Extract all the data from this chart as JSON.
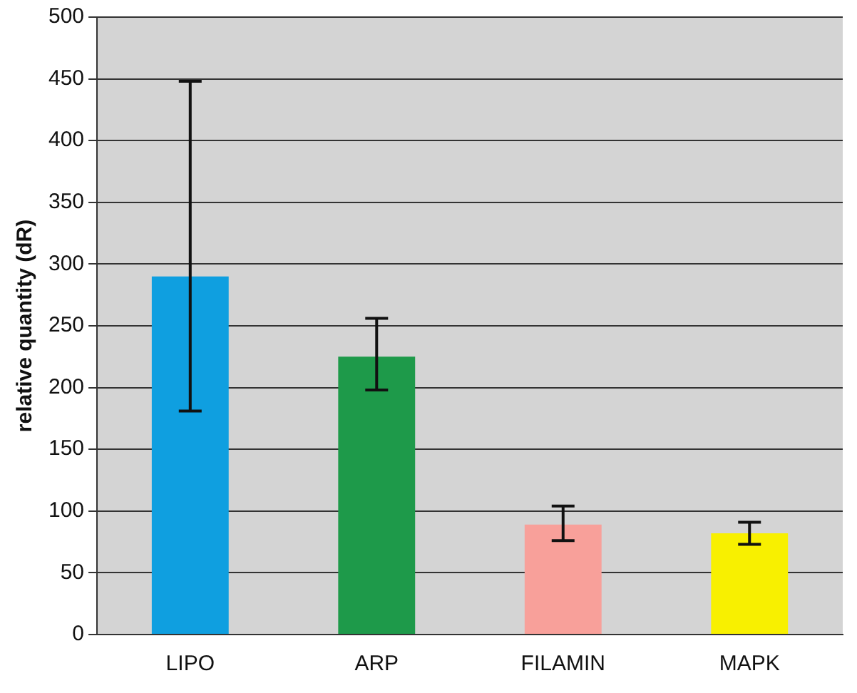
{
  "chart_data": {
    "type": "bar",
    "ylabel": "relative quantity (dR)",
    "categories": [
      "LIPO",
      "ARP",
      "FILAMIN",
      "MAPK"
    ],
    "values": [
      290,
      225,
      89,
      82
    ],
    "colors": [
      "#0f9fe0",
      "#1e9a4a",
      "#f8a09a",
      "#f8f000"
    ],
    "errors": [
      [
        181,
        448
      ],
      [
        198,
        256
      ],
      [
        76,
        104
      ],
      [
        73,
        91
      ]
    ],
    "ylim": [
      0,
      500
    ],
    "yticks": [
      0,
      50,
      100,
      150,
      200,
      250,
      300,
      350,
      400,
      450,
      500
    ],
    "grid": "y",
    "legend": false
  }
}
